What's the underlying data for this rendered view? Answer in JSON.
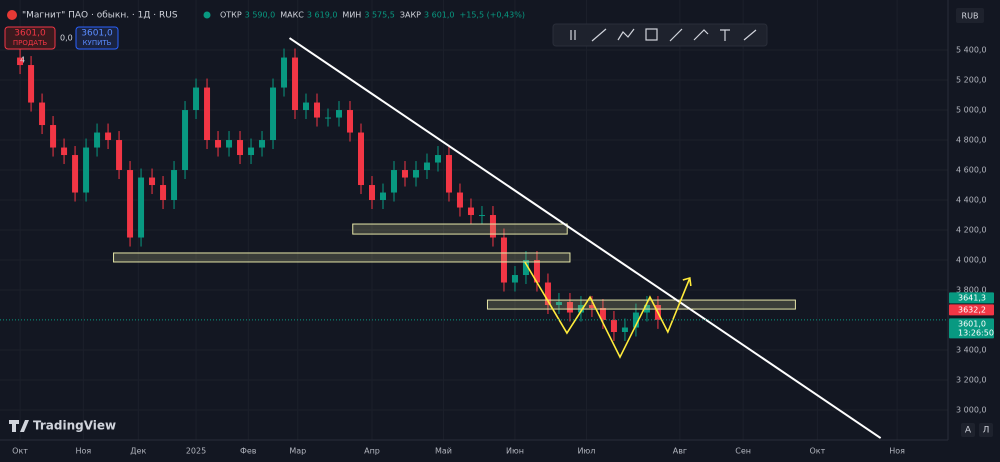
{
  "header": {
    "symbol": "\"Магнит\" ПАО · обыкн. · 1Д · RUS",
    "ohlc": [
      {
        "label": "ОТКР",
        "value": "3 590,0"
      },
      {
        "label": "МАКС",
        "value": "3 619,0"
      },
      {
        "label": "МИН",
        "value": "3 575,5"
      },
      {
        "label": "ЗАКР",
        "value": "3 601,0"
      }
    ],
    "change": "+15,5 (+0,43%)"
  },
  "trade": {
    "sell_price": "3601,0",
    "sell": "ПРОДАТЬ",
    "spread": "0,0",
    "buy_price": "3601,0",
    "buy": "КУПИТЬ"
  },
  "collapse": "4",
  "currency": "RUB",
  "logo": "TradingView",
  "auto_button": "A",
  "log_button": "Л",
  "chart_data": {
    "type": "candlestick",
    "up_color": "#089981",
    "down_color": "#f23645",
    "grid": true,
    "xlim": [
      -7.3,
      337.5
    ],
    "ylim": [
      2800,
      5567
    ],
    "xticks": [
      {
        "value": 0,
        "label": "Окт"
      },
      {
        "value": 23,
        "label": "Ноя"
      },
      {
        "value": 43,
        "label": "Дек"
      },
      {
        "value": 64,
        "label": "2025"
      },
      {
        "value": 83,
        "label": "Фев"
      },
      {
        "value": 101,
        "label": "Мар"
      },
      {
        "value": 128,
        "label": "Апр"
      },
      {
        "value": 154,
        "label": "Май"
      },
      {
        "value": 180,
        "label": "Июн"
      },
      {
        "value": 206,
        "label": "Июл"
      },
      {
        "value": 240,
        "label": "Авг"
      },
      {
        "value": 263,
        "label": "Сен"
      },
      {
        "value": 290,
        "label": "Окт"
      },
      {
        "value": 319,
        "label": "Ноя"
      }
    ],
    "yticks": [
      {
        "value": 5400,
        "label": "5 400,0"
      },
      {
        "value": 5200,
        "label": "5 200,0"
      },
      {
        "value": 5000,
        "label": "5 000,0"
      },
      {
        "value": 4800,
        "label": "4 800,0"
      },
      {
        "value": 4600,
        "label": "4 600,0"
      },
      {
        "value": 4400,
        "label": "4 400,0"
      },
      {
        "value": 4200,
        "label": "4 200,0"
      },
      {
        "value": 4000,
        "label": "4 000,0"
      },
      {
        "value": 3800,
        "label": "3 800,0"
      },
      {
        "value": 3400,
        "label": "3 400,0"
      },
      {
        "value": 3200,
        "label": "3 200,0"
      },
      {
        "value": 3000,
        "label": "3 000,0"
      }
    ],
    "x": [
      0,
      4,
      8,
      12,
      16,
      20,
      24,
      28,
      32,
      36,
      40,
      44,
      48,
      52,
      56,
      60,
      64,
      68,
      72,
      76,
      80,
      84,
      88,
      92,
      96,
      100,
      104,
      108,
      112,
      116,
      120,
      124,
      128,
      132,
      136,
      140,
      144,
      148,
      152,
      156,
      160,
      164,
      168,
      172,
      176,
      180,
      184,
      188,
      192,
      196,
      200,
      204,
      208,
      212,
      216,
      220,
      224,
      228,
      232
    ],
    "ohlc": [
      [
        5350,
        5410,
        5240,
        5300
      ],
      [
        5300,
        5360,
        4990,
        5050
      ],
      [
        5050,
        5110,
        4840,
        4900
      ],
      [
        4900,
        4960,
        4690,
        4750
      ],
      [
        4750,
        4810,
        4640,
        4700
      ],
      [
        4700,
        4760,
        4390,
        4450
      ],
      [
        4450,
        4810,
        4390,
        4750
      ],
      [
        4750,
        4910,
        4690,
        4850
      ],
      [
        4850,
        4910,
        4740,
        4800
      ],
      [
        4800,
        4860,
        4540,
        4600
      ],
      [
        4600,
        4660,
        4090,
        4150
      ],
      [
        4150,
        4610,
        4090,
        4550
      ],
      [
        4550,
        4610,
        4440,
        4500
      ],
      [
        4500,
        4560,
        4340,
        4400
      ],
      [
        4400,
        4660,
        4340,
        4600
      ],
      [
        4600,
        5060,
        4540,
        5000
      ],
      [
        5000,
        5210,
        4940,
        5150
      ],
      [
        5150,
        5210,
        4740,
        4800
      ],
      [
        4800,
        4860,
        4690,
        4750
      ],
      [
        4750,
        4860,
        4690,
        4800
      ],
      [
        4800,
        4860,
        4640,
        4700
      ],
      [
        4700,
        4810,
        4640,
        4750
      ],
      [
        4750,
        4860,
        4690,
        4800
      ],
      [
        4800,
        5210,
        4740,
        5150
      ],
      [
        5150,
        5410,
        5090,
        5350
      ],
      [
        5350,
        5410,
        4940,
        5000
      ],
      [
        5000,
        5110,
        4940,
        5050
      ],
      [
        5050,
        5110,
        4890,
        4950
      ],
      [
        4950,
        5010,
        4890,
        4950
      ],
      [
        4950,
        5060,
        4890,
        5000
      ],
      [
        5000,
        5060,
        4790,
        4850
      ],
      [
        4850,
        4910,
        4440,
        4500
      ],
      [
        4500,
        4560,
        4340,
        4400
      ],
      [
        4400,
        4510,
        4340,
        4450
      ],
      [
        4450,
        4660,
        4390,
        4600
      ],
      [
        4600,
        4660,
        4490,
        4550
      ],
      [
        4550,
        4660,
        4490,
        4600
      ],
      [
        4600,
        4710,
        4540,
        4650
      ],
      [
        4650,
        4760,
        4590,
        4700
      ],
      [
        4700,
        4760,
        4390,
        4450
      ],
      [
        4450,
        4510,
        4290,
        4350
      ],
      [
        4350,
        4410,
        4240,
        4300
      ],
      [
        4300,
        4360,
        4240,
        4300
      ],
      [
        4300,
        4360,
        4090,
        4150
      ],
      [
        4150,
        4210,
        3790,
        3850
      ],
      [
        3850,
        3960,
        3790,
        3900
      ],
      [
        3900,
        4060,
        3840,
        4000
      ],
      [
        4000,
        4060,
        3790,
        3850
      ],
      [
        3850,
        3910,
        3640,
        3700
      ],
      [
        3700,
        3780,
        3640,
        3720
      ],
      [
        3720,
        3780,
        3590,
        3650
      ],
      [
        3650,
        3760,
        3590,
        3700
      ],
      [
        3700,
        3760,
        3620,
        3680
      ],
      [
        3680,
        3740,
        3540,
        3600
      ],
      [
        3600,
        3660,
        3460,
        3520
      ],
      [
        3520,
        3610,
        3460,
        3550
      ],
      [
        3550,
        3710,
        3490,
        3650
      ],
      [
        3650,
        3760,
        3590,
        3700
      ],
      [
        3700,
        3760,
        3541,
        3601
      ]
    ],
    "trendline": [
      [
        98,
        5480
      ],
      [
        313,
        2813
      ]
    ],
    "zones": [
      [
        [
          121,
          4240
        ],
        [
          199,
          4173
        ]
      ],
      [
        [
          34,
          4047
        ],
        [
          200,
          3987
        ]
      ],
      [
        [
          170,
          3733
        ],
        [
          282,
          3673
        ]
      ]
    ],
    "zigzag": [
      [
        183.6,
        3987
      ],
      [
        198.9,
        3513
      ],
      [
        207.3,
        3753
      ],
      [
        218.2,
        3353
      ],
      [
        229.1,
        3753
      ],
      [
        235.6,
        3520
      ],
      [
        243.6,
        3880
      ]
    ],
    "price_badges": [
      {
        "value": 3641.3,
        "label": "3641,3",
        "color": "#089981"
      },
      {
        "value": 3632.2,
        "label": "3632,2",
        "color": "#f23645"
      },
      {
        "value": 3601.0,
        "label": "3601,0",
        "color": "#089981"
      }
    ],
    "countdown": "13:26:50"
  }
}
